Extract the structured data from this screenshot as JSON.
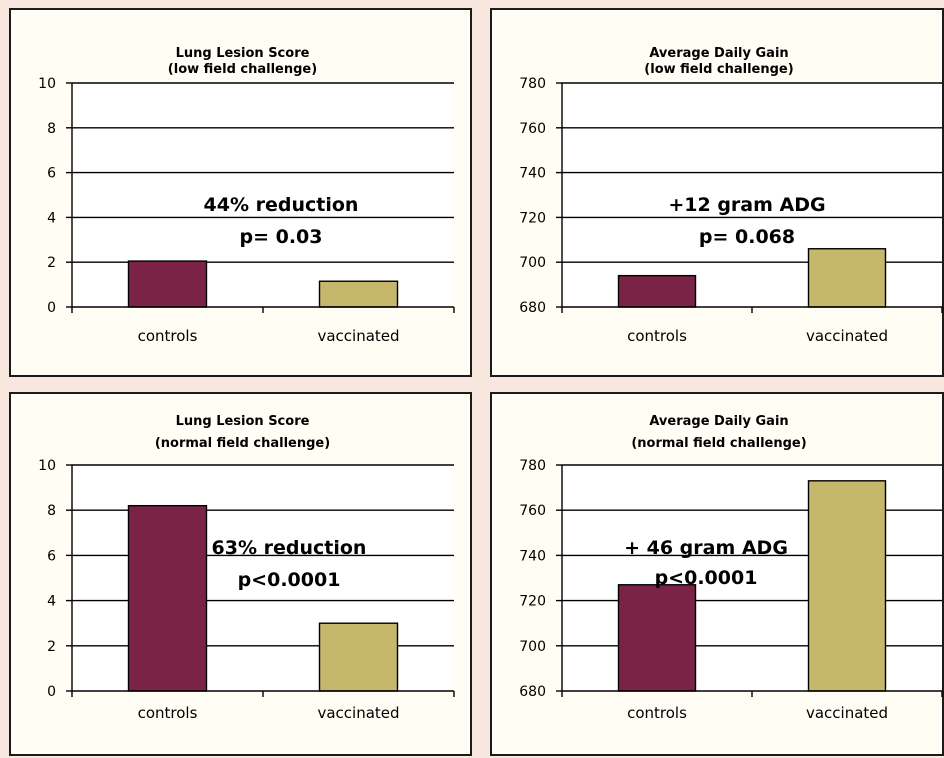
{
  "colors": {
    "controls": "#7b2346",
    "vaccinated": "#c5b86c"
  },
  "chart_data": [
    {
      "type": "bar",
      "title": [
        "Lung Lesion Score",
        "(low field challenge)"
      ],
      "categories": [
        "controls",
        "vaccinated"
      ],
      "values": [
        2.05,
        1.15
      ],
      "ylim": [
        0,
        10
      ],
      "yticks": [
        0,
        2,
        4,
        6,
        8,
        10
      ],
      "grid": true,
      "annotation": [
        "44% reduction",
        "p= 0.03"
      ]
    },
    {
      "type": "bar",
      "title": [
        "Average Daily Gain",
        "(low field challenge)"
      ],
      "categories": [
        "controls",
        "vaccinated"
      ],
      "values": [
        694,
        706
      ],
      "ylim": [
        680,
        780
      ],
      "yticks": [
        680,
        700,
        720,
        740,
        760,
        780
      ],
      "grid": true,
      "annotation": [
        "+12 gram ADG",
        "p= 0.068"
      ]
    },
    {
      "type": "bar",
      "title": [
        "Lung Lesion Score",
        "(normal field challenge)"
      ],
      "categories": [
        "controls",
        "vaccinated"
      ],
      "values": [
        8.2,
        3.0
      ],
      "ylim": [
        0,
        10
      ],
      "yticks": [
        0,
        2,
        4,
        6,
        8,
        10
      ],
      "grid": true,
      "annotation": [
        "63% reduction",
        "p<0.0001"
      ]
    },
    {
      "type": "bar",
      "title": [
        "Average Daily Gain",
        "(normal field challenge)"
      ],
      "categories": [
        "controls",
        "vaccinated"
      ],
      "values": [
        727,
        773
      ],
      "ylim": [
        680,
        780
      ],
      "yticks": [
        680,
        700,
        720,
        740,
        760,
        780
      ],
      "grid": true,
      "annotation": [
        "+ 46 gram ADG",
        "p<0.0001"
      ]
    }
  ]
}
